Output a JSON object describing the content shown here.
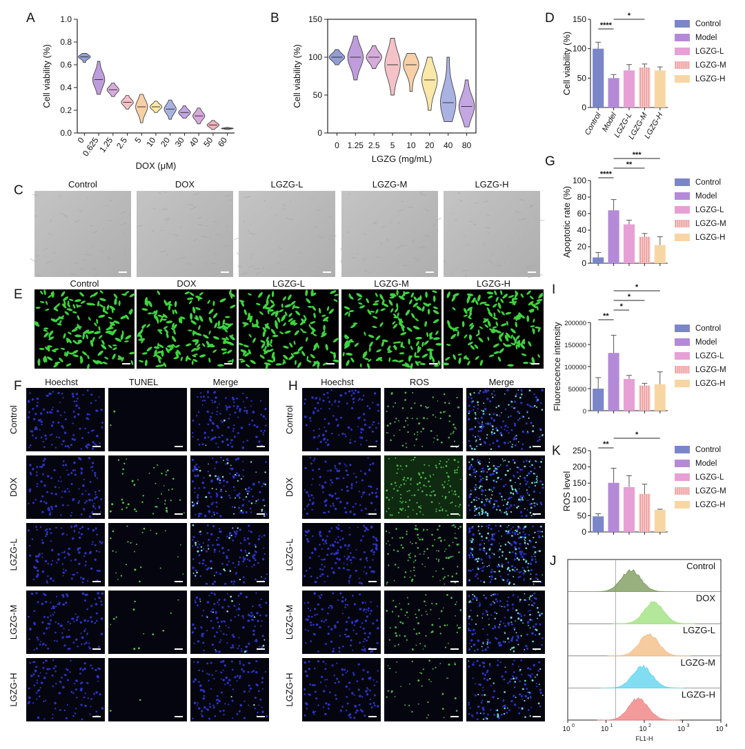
{
  "panels": {
    "A": "A",
    "B": "B",
    "C": "C",
    "D": "D",
    "E": "E",
    "F": "F",
    "G": "G",
    "H": "H",
    "I": "I",
    "J": "J",
    "K": "K"
  },
  "colors": {
    "control": "#7b86c9",
    "model": "#b48ad8",
    "lgzg_l": "#e6a0d6",
    "lgzg_m": "#f4b6b6",
    "lgzg_h": "#f8d6a4",
    "green_cell": "#3ed43e",
    "blue_nuclei": "#2a34c8",
    "brightfield": "#bdbdbd"
  },
  "panel_C": {
    "labels": [
      "Control",
      "DOX",
      "LGZG-L",
      "LGZG-M",
      "LGZG-H"
    ]
  },
  "panel_E": {
    "labels": [
      "Control",
      "DOX",
      "LGZG-L",
      "LGZG-M",
      "LGZG-H"
    ]
  },
  "panel_F": {
    "cols": [
      "Hoechst",
      "TUNEL",
      "Merge"
    ],
    "rows": [
      "Control",
      "DOX",
      "LGZG-L",
      "LGZG-M",
      "LGZG-H"
    ]
  },
  "panel_H": {
    "cols": [
      "Hoechst",
      "ROS",
      "Merge"
    ],
    "rows": [
      "Control",
      "DOX",
      "LGZG-L",
      "LGZG-M",
      "LGZG-H"
    ]
  },
  "chart_data": [
    {
      "id": "A",
      "type": "violin",
      "categories": [
        "0",
        "0.625",
        "1.25",
        "2.5",
        "5",
        "10",
        "20",
        "30",
        "40",
        "50",
        "60"
      ],
      "medians": [
        0.67,
        0.47,
        0.38,
        0.27,
        0.23,
        0.23,
        0.21,
        0.18,
        0.15,
        0.07,
        0.04
      ],
      "ranges": [
        [
          0.62,
          0.7
        ],
        [
          0.34,
          0.63
        ],
        [
          0.32,
          0.44
        ],
        [
          0.21,
          0.33
        ],
        [
          0.09,
          0.34
        ],
        [
          0.18,
          0.28
        ],
        [
          0.12,
          0.29
        ],
        [
          0.13,
          0.24
        ],
        [
          0.08,
          0.22
        ],
        [
          0.03,
          0.11
        ],
        [
          0.03,
          0.05
        ]
      ],
      "colors": [
        "#6f7ec8",
        "#a97bd0",
        "#c990d0",
        "#f2aeb4",
        "#f6c08a",
        "#f8e08c",
        "#8e98d8",
        "#b08ad8",
        "#c88cd0",
        "#ee9aa8",
        "#8a8f9a"
      ],
      "xlabel": "DOX (μM)",
      "ylabel": "Cell viability (%)",
      "ylim": [
        0,
        1.0
      ],
      "yticks": [
        "0.0",
        "0.2",
        "0.4",
        "0.6",
        "0.8",
        "1.0"
      ]
    },
    {
      "id": "B",
      "type": "violin",
      "categories": [
        "0",
        "1.25",
        "2.5",
        "5",
        "10",
        "20",
        "40",
        "80"
      ],
      "medians": [
        100,
        100,
        100,
        90,
        90,
        70,
        40,
        35
      ],
      "ranges": [
        [
          90,
          110
        ],
        [
          70,
          128
        ],
        [
          85,
          115
        ],
        [
          50,
          125
        ],
        [
          55,
          105
        ],
        [
          30,
          100
        ],
        [
          15,
          100
        ],
        [
          8,
          70
        ]
      ],
      "colors": [
        "#6f7ec8",
        "#a97bd0",
        "#c990d0",
        "#f2aeb4",
        "#f6c08a",
        "#f8e08c",
        "#8e98d8",
        "#b08ad8"
      ],
      "xlabel": "LGZG (mg/mL)",
      "ylabel": "Cell viability (%)",
      "ylim": [
        0,
        150
      ],
      "yticks": [
        "0",
        "50",
        "100",
        "150"
      ]
    },
    {
      "id": "D",
      "type": "bar",
      "categories": [
        "Control",
        "Model",
        "LGZG-L",
        "LGZG-M",
        "LGZG-H"
      ],
      "values": [
        100,
        50,
        63,
        68,
        63
      ],
      "errors": [
        11,
        6,
        10,
        6,
        6
      ],
      "ylabel": "Cell viability (%)",
      "ylim": [
        0,
        150
      ],
      "yticks": [
        "0",
        "50",
        "100",
        "150"
      ],
      "brackets": [
        {
          "from": 0,
          "to": 1,
          "label": "****"
        },
        {
          "from": 1,
          "to": 3,
          "label": "*"
        }
      ],
      "show_x_labels": true
    },
    {
      "id": "G",
      "type": "bar",
      "categories": [
        "Control",
        "Model",
        "LGZG-L",
        "LGZG-M",
        "LGZG-H"
      ],
      "values": [
        7,
        64,
        47,
        32,
        22
      ],
      "errors": [
        6,
        13,
        5,
        4,
        10
      ],
      "ylabel": "Apoptotic rate (%)",
      "ylim": [
        0,
        100
      ],
      "yticks": [
        "0",
        "20",
        "40",
        "60",
        "80",
        "100"
      ],
      "brackets": [
        {
          "from": 0,
          "to": 1,
          "label": "****"
        },
        {
          "from": 1,
          "to": 3,
          "label": "**"
        },
        {
          "from": 1,
          "to": 4,
          "label": "***"
        }
      ]
    },
    {
      "id": "I",
      "type": "bar",
      "categories": [
        "Control",
        "Model",
        "LGZG-L",
        "LGZG-M",
        "LGZG-H"
      ],
      "values": [
        50000,
        131000,
        72000,
        57000,
        60000
      ],
      "errors": [
        25000,
        40000,
        8000,
        5000,
        28000
      ],
      "ylabel": "Fluorescence intensity",
      "ylim": [
        0,
        200000
      ],
      "yticks": [
        "0",
        "50000",
        "100000",
        "150000",
        "200000"
      ],
      "brackets": [
        {
          "from": 0,
          "to": 1,
          "label": "**"
        },
        {
          "from": 1,
          "to": 2,
          "label": "*"
        },
        {
          "from": 1,
          "to": 3,
          "label": "*"
        },
        {
          "from": 1,
          "to": 4,
          "label": "*"
        }
      ]
    },
    {
      "id": "K",
      "type": "bar",
      "categories": [
        "Control",
        "Model",
        "LGZG-L",
        "LGZG-M",
        "LGZG-H"
      ],
      "values": [
        48,
        151,
        138,
        117,
        68
      ],
      "errors": [
        8,
        45,
        35,
        30,
        2
      ],
      "ylabel": "ROS level",
      "ylim": [
        0,
        250
      ],
      "yticks": [
        "0",
        "50",
        "100",
        "150",
        "200",
        "250"
      ],
      "brackets": [
        {
          "from": 0,
          "to": 1,
          "label": "**"
        },
        {
          "from": 1,
          "to": 4,
          "label": "*"
        }
      ]
    },
    {
      "id": "J",
      "type": "histogram",
      "series": [
        {
          "name": "Control",
          "peak": 0.65,
          "color": "#7a9a5a"
        },
        {
          "name": "DOX",
          "peak": 1.25,
          "color": "#9ee27e"
        },
        {
          "name": "LGZG-L",
          "peak": 1.12,
          "color": "#f3bd83"
        },
        {
          "name": "LGZG-M",
          "peak": 0.95,
          "color": "#5fd4ef"
        },
        {
          "name": "LGZG-H",
          "peak": 0.85,
          "color": "#ef7f7f"
        }
      ],
      "xlabel": "FL1-H",
      "xscale": "log",
      "xlim": [
        1,
        10000
      ],
      "xticks": [
        "10",
        "10",
        "10",
        "10",
        "10"
      ],
      "xtick_exp": [
        "0",
        "1",
        "2",
        "3",
        "4"
      ]
    }
  ]
}
